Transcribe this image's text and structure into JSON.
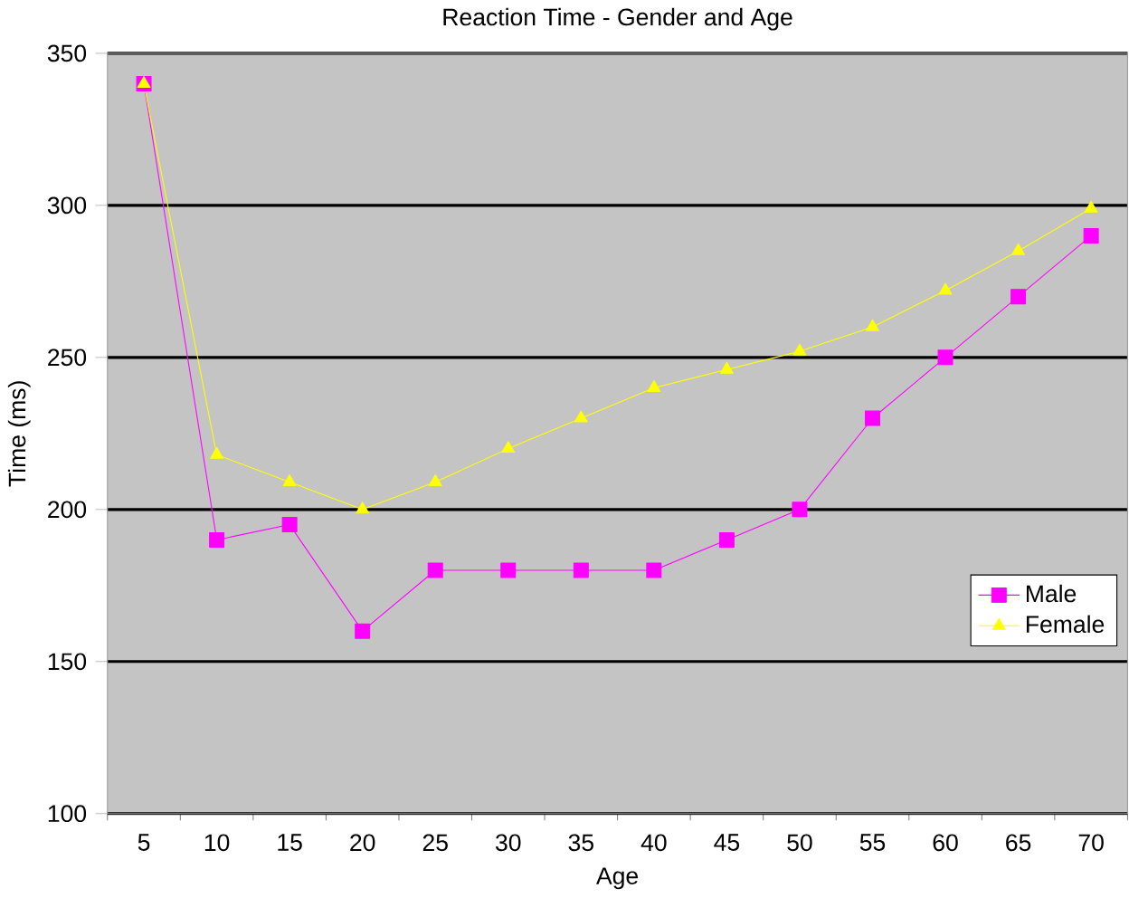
{
  "chart_data": {
    "type": "line",
    "title": "Reaction Time - Gender and Age",
    "xlabel": "Age",
    "ylabel": "Time (ms)",
    "categories": [
      "5",
      "10",
      "15",
      "20",
      "25",
      "30",
      "35",
      "40",
      "45",
      "50",
      "55",
      "60",
      "65",
      "70"
    ],
    "series": [
      {
        "name": "Male",
        "color": "#ff00ff",
        "marker": "square",
        "values": [
          340,
          190,
          195,
          160,
          180,
          180,
          180,
          180,
          190,
          200,
          230,
          250,
          270,
          290
        ]
      },
      {
        "name": "Female",
        "color": "#ffff00",
        "marker": "triangle",
        "values": [
          340,
          218,
          209,
          200,
          209,
          220,
          230,
          240,
          246,
          252,
          260,
          272,
          285,
          299
        ]
      }
    ],
    "ylim": [
      100,
      350
    ],
    "yticks": [
      100,
      150,
      200,
      250,
      300,
      350
    ],
    "grid": "y",
    "legend": "right",
    "line_style": "solid"
  }
}
